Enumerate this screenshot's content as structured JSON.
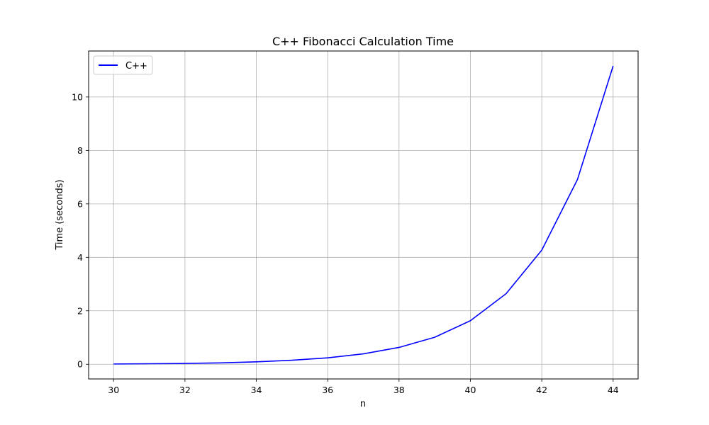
{
  "chart_data": {
    "type": "line",
    "title": "C++ Fibonacci Calculation Time",
    "xlabel": "n",
    "ylabel": "Time (seconds)",
    "x": [
      30,
      31,
      32,
      33,
      34,
      35,
      36,
      37,
      38,
      39,
      40,
      41,
      42,
      43,
      44
    ],
    "series": [
      {
        "name": "C++",
        "color": "#0000ff",
        "values": [
          0.01,
          0.02,
          0.03,
          0.05,
          0.09,
          0.15,
          0.24,
          0.39,
          0.63,
          1.01,
          1.63,
          2.64,
          4.27,
          6.91,
          11.16
        ]
      }
    ],
    "xlim": [
      29.3,
      44.7
    ],
    "ylim": [
      -0.55,
      11.72
    ],
    "xticks": [
      30,
      32,
      34,
      36,
      38,
      40,
      42,
      44
    ],
    "yticks": [
      0,
      2,
      4,
      6,
      8,
      10
    ],
    "grid": true,
    "legend_position": "upper-left"
  }
}
